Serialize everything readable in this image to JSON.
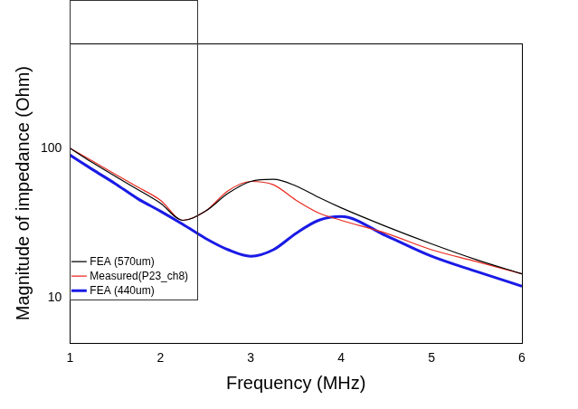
{
  "chart_data": {
    "type": "line",
    "x_label": "Frequency (MHz)",
    "y_label": "Magnitude of impedance (Ohm)",
    "x": [
      1,
      1.25,
      1.5,
      1.75,
      2,
      2.25,
      2.5,
      2.75,
      3,
      3.25,
      3.5,
      3.75,
      4,
      4.5,
      5,
      5.5,
      6
    ],
    "series": [
      {
        "name": "FEA (570um)",
        "color": "#000000",
        "values": [
          100,
          80,
          65,
          53,
          43,
          33,
          38,
          50,
          60,
          62,
          56,
          47,
          40,
          30,
          23,
          18,
          14.5
        ]
      },
      {
        "name": "Measured(P23_ch8)",
        "color": "#e8281e",
        "values": [
          100,
          82,
          67,
          55,
          45,
          33,
          38,
          52,
          60,
          57,
          45,
          37,
          33,
          27,
          21,
          17.5,
          14.5
        ]
      },
      {
        "name": "FEA (440um)",
        "color": "#1a1ae6",
        "values": [
          90,
          72,
          58,
          46,
          38,
          31,
          25,
          21,
          19,
          21,
          27,
          33,
          35,
          26,
          19,
          15,
          12
        ]
      }
    ],
    "xlim": [
      1,
      6
    ],
    "xticks": [
      1,
      2,
      3,
      4,
      5,
      6
    ],
    "ylim": [
      5,
      500
    ],
    "yticks": [
      10,
      100
    ],
    "log": "y",
    "grid": false,
    "legend": "upper right"
  }
}
